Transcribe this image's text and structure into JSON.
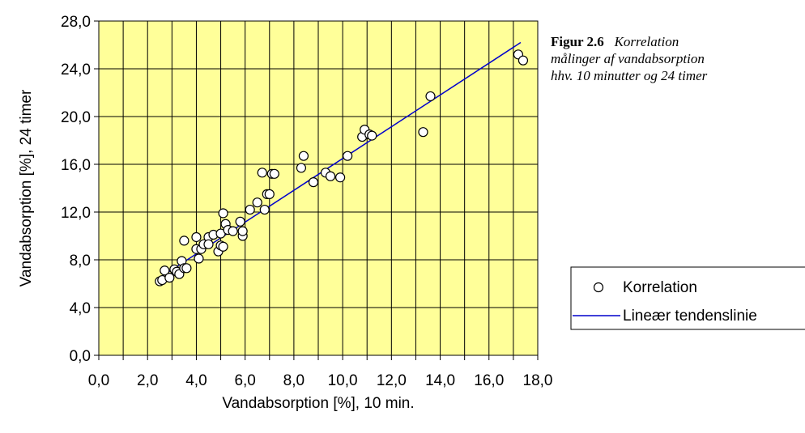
{
  "caption": {
    "label": "Figur 2.6",
    "line1": "Korrelation",
    "line2": "målinger af vandabsorption",
    "line3": "hhv. 10 minutter og 24 timer"
  },
  "colors": {
    "plot_background": "#FFFF99",
    "gridline": "#000000",
    "trendline": "#0000CC",
    "marker_fill": "#FFFFFF",
    "marker_stroke": "#000000"
  },
  "chart_data": {
    "type": "scatter",
    "title": "",
    "xlabel": "Vandabsorption [%], 10 min.",
    "ylabel": "Vandabsorption [%], 24 timer",
    "xlim": [
      0,
      18
    ],
    "ylim": [
      0,
      28
    ],
    "grid": true,
    "x_ticks": [
      0,
      1,
      2,
      3,
      4,
      5,
      6,
      7,
      8,
      9,
      10,
      11,
      12,
      13,
      14,
      15,
      16,
      17,
      18
    ],
    "x_tick_labels": [
      "0,0",
      "2,0",
      "4,0",
      "6,0",
      "8,0",
      "10,0",
      "12,0",
      "14,0",
      "16,0",
      "18,0"
    ],
    "y_tick_labels": [
      "0,0",
      "4,0",
      "8,0",
      "12,0",
      "16,0",
      "20,0",
      "24,0",
      "28,0"
    ],
    "legend_position": "right",
    "series": [
      {
        "name": "Korrelation",
        "kind": "points",
        "points": [
          [
            2.5,
            6.2
          ],
          [
            2.6,
            6.3
          ],
          [
            2.7,
            7.1
          ],
          [
            2.9,
            6.5
          ],
          [
            3.1,
            7.2
          ],
          [
            3.2,
            7.0
          ],
          [
            3.3,
            6.8
          ],
          [
            3.4,
            7.9
          ],
          [
            3.5,
            7.3
          ],
          [
            3.5,
            9.6
          ],
          [
            3.6,
            7.3
          ],
          [
            4.0,
            9.9
          ],
          [
            4.0,
            8.9
          ],
          [
            4.1,
            8.1
          ],
          [
            4.2,
            8.9
          ],
          [
            4.3,
            9.3
          ],
          [
            4.5,
            9.9
          ],
          [
            4.5,
            9.3
          ],
          [
            4.7,
            10.1
          ],
          [
            4.9,
            8.7
          ],
          [
            5.0,
            10.2
          ],
          [
            5.0,
            9.2
          ],
          [
            5.1,
            11.9
          ],
          [
            5.1,
            9.1
          ],
          [
            5.2,
            11.0
          ],
          [
            5.3,
            10.5
          ],
          [
            5.5,
            10.4
          ],
          [
            5.8,
            11.2
          ],
          [
            5.9,
            10.0
          ],
          [
            5.9,
            10.4
          ],
          [
            6.2,
            12.2
          ],
          [
            6.5,
            12.8
          ],
          [
            6.7,
            15.3
          ],
          [
            6.8,
            12.2
          ],
          [
            6.9,
            13.5
          ],
          [
            7.0,
            13.5
          ],
          [
            7.1,
            15.2
          ],
          [
            7.2,
            15.2
          ],
          [
            8.3,
            15.7
          ],
          [
            8.4,
            16.7
          ],
          [
            8.8,
            14.5
          ],
          [
            9.3,
            15.3
          ],
          [
            9.5,
            15.0
          ],
          [
            9.9,
            14.9
          ],
          [
            10.2,
            16.7
          ],
          [
            10.8,
            18.3
          ],
          [
            10.9,
            18.9
          ],
          [
            11.1,
            18.5
          ],
          [
            11.2,
            18.4
          ],
          [
            13.3,
            18.7
          ],
          [
            13.6,
            21.7
          ],
          [
            17.2,
            25.2
          ],
          [
            17.4,
            24.7
          ]
        ]
      },
      {
        "name": "Lineær tendenslinie",
        "kind": "line",
        "points": [
          [
            2.5,
            6.5
          ],
          [
            17.3,
            26.2
          ]
        ]
      }
    ]
  }
}
